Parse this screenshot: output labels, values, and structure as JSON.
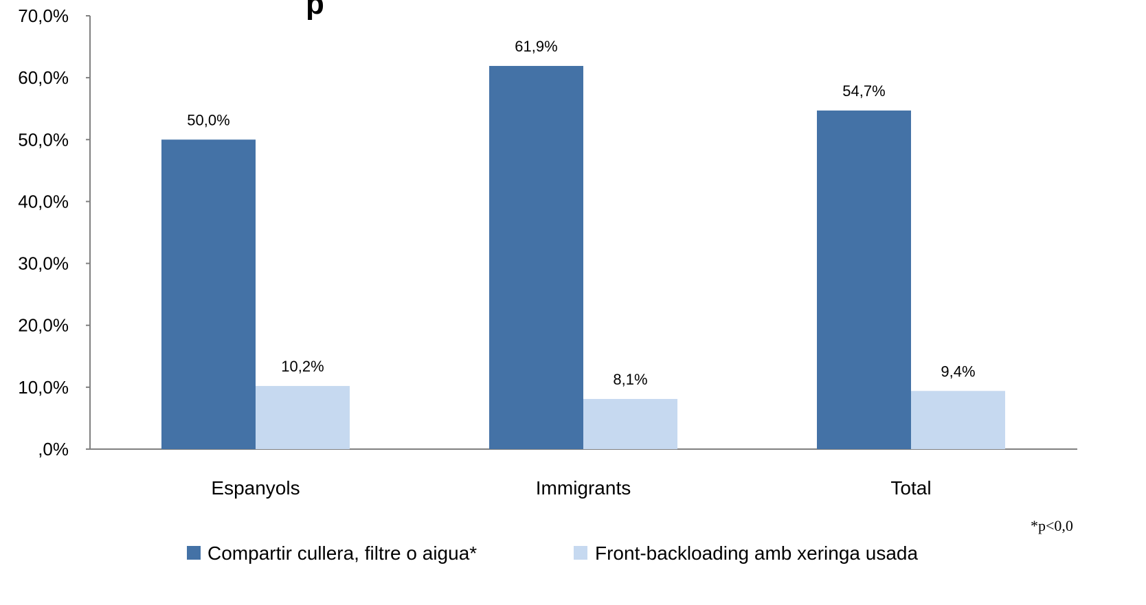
{
  "chart_data": {
    "type": "bar",
    "title": "p",
    "categories": [
      "Espanyols",
      "Immigrants",
      "Total"
    ],
    "series": [
      {
        "name": "Compartir cullera, filtre o aigua*",
        "values": [
          50.0,
          61.9,
          54.7
        ],
        "data_labels": [
          "50,0%",
          "61,9%",
          "54,7%"
        ]
      },
      {
        "name": "Front-backloading amb xeringa usada",
        "values": [
          10.2,
          8.1,
          9.4
        ],
        "data_labels": [
          "10,2%",
          "8,1%",
          "9,4%"
        ]
      }
    ],
    "ylim": [
      0,
      70
    ],
    "y_ticks": [
      0,
      10,
      20,
      30,
      40,
      50,
      60,
      70
    ],
    "y_tick_labels": [
      ",0%",
      "10,0%",
      "20,0%",
      "30,0%",
      "40,0%",
      "50,0%",
      "60,0%",
      "70,0%"
    ],
    "grid": false,
    "legend_placement": "bottom",
    "footnote": "*p<0,0",
    "colors": {
      "series_1": "#4472A6",
      "series_2": "#C6D9F0",
      "axis": "#7f7f7f"
    }
  }
}
